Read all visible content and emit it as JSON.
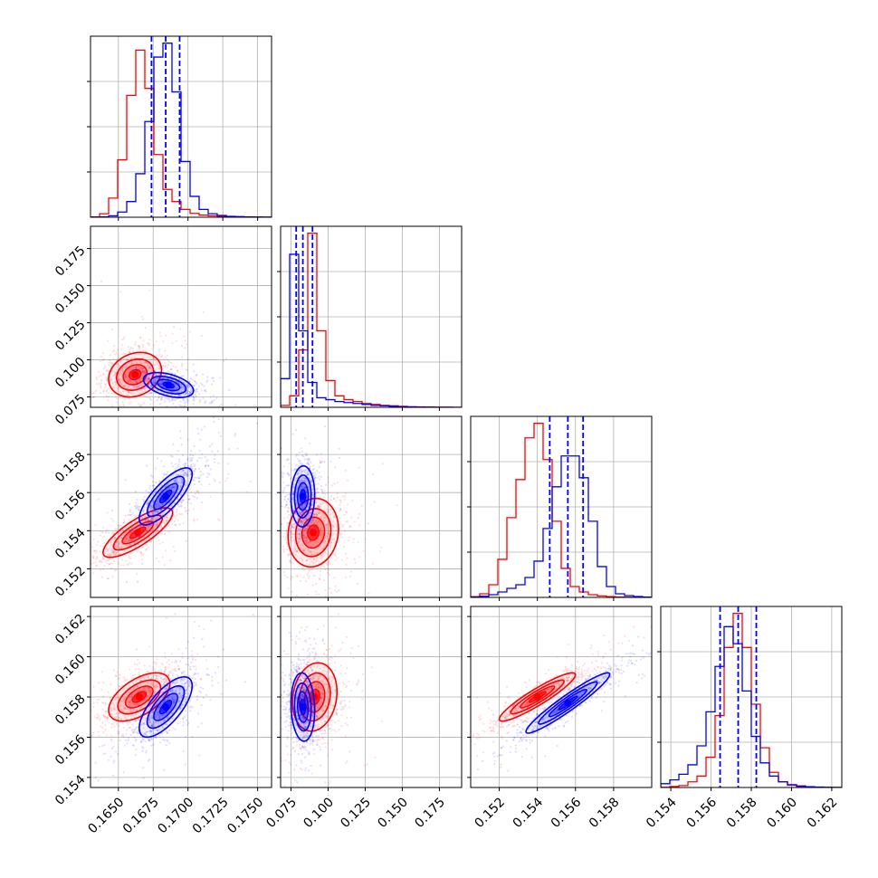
{
  "chart_data": {
    "type": "corner",
    "title": "",
    "grid": true,
    "colors": {
      "red": "#ff0000",
      "blue": "#0000ff"
    },
    "parameters": [
      {
        "index": 0,
        "range": [
          0.163,
          0.176
        ],
        "ticks": [
          "0.1650",
          "0.1675",
          "0.1700",
          "0.1725",
          "0.1750"
        ],
        "tick_values": [
          0.165,
          0.1675,
          0.17,
          0.1725,
          0.175
        ]
      },
      {
        "index": 1,
        "range": [
          0.068,
          0.19
        ],
        "ticks": [
          "0.075",
          "0.100",
          "0.125",
          "0.150",
          "0.175"
        ],
        "tick_values": [
          0.075,
          0.1,
          0.125,
          0.15,
          0.175
        ]
      },
      {
        "index": 2,
        "range": [
          0.1505,
          0.16
        ],
        "ticks": [
          "0.152",
          "0.154",
          "0.156",
          "0.158"
        ],
        "tick_values": [
          0.152,
          0.154,
          0.156,
          0.158
        ]
      },
      {
        "index": 3,
        "range": [
          0.1535,
          0.1625
        ],
        "ticks": [
          "0.154",
          "0.156",
          "0.158",
          "0.160",
          "0.162"
        ],
        "tick_values": [
          0.154,
          0.156,
          0.158,
          0.16,
          0.162
        ]
      }
    ],
    "quantile_lines": [
      [
        0.16738,
        0.1684,
        0.1694
      ],
      [
        0.0785,
        0.083,
        0.0895
      ],
      [
        0.15465,
        0.1556,
        0.1564
      ],
      [
        0.15645,
        0.15735,
        0.15825
      ]
    ],
    "histograms": {
      "red": [
        [
          0.002,
          0.02,
          0.11,
          0.33,
          0.7,
          0.96,
          0.74,
          0.36,
          0.16,
          0.09,
          0.045,
          0.022,
          0.012,
          0.008,
          0.006,
          0.004,
          0.003,
          0.002,
          0.001,
          0.0005
        ],
        [
          0.01,
          0.06,
          0.3,
          0.91,
          0.4,
          0.14,
          0.06,
          0.04,
          0.03,
          0.02,
          0.015,
          0.01,
          0.008,
          0.005,
          0.003,
          0.002,
          0.001,
          0.0005,
          0.0003,
          0.0001
        ],
        [
          0.004,
          0.02,
          0.07,
          0.21,
          0.44,
          0.65,
          0.88,
          0.96,
          0.76,
          0.42,
          0.16,
          0.06,
          0.03,
          0.015,
          0.008,
          0.004,
          0.002,
          0.001,
          0.0005,
          0.0002
        ],
        [
          0.001,
          0.005,
          0.01,
          0.03,
          0.06,
          0.16,
          0.38,
          0.74,
          0.92,
          0.74,
          0.44,
          0.21,
          0.08,
          0.03,
          0.012,
          0.005,
          0.002,
          0.001,
          0.0005,
          0.0001
        ]
      ],
      "blue": [
        [
          0.0005,
          0.002,
          0.008,
          0.03,
          0.09,
          0.25,
          0.55,
          0.92,
          1.0,
          0.72,
          0.32,
          0.12,
          0.045,
          0.02,
          0.01,
          0.005,
          0.003,
          0.002,
          0.001,
          0.0005
        ],
        [
          0.15,
          0.8,
          0.4,
          0.13,
          0.05,
          0.04,
          0.03,
          0.025,
          0.02,
          0.015,
          0.01,
          0.008,
          0.005,
          0.003,
          0.002,
          0.001,
          0.001,
          0.0005,
          0.0003,
          0.0001
        ],
        [
          0.002,
          0.006,
          0.015,
          0.03,
          0.05,
          0.07,
          0.11,
          0.2,
          0.38,
          0.61,
          0.78,
          0.78,
          0.66,
          0.42,
          0.17,
          0.06,
          0.02,
          0.01,
          0.005,
          0.002
        ],
        [
          0.02,
          0.04,
          0.07,
          0.12,
          0.22,
          0.4,
          0.64,
          0.85,
          0.76,
          0.51,
          0.27,
          0.13,
          0.06,
          0.03,
          0.015,
          0.008,
          0.004,
          0.002,
          0.001,
          0.0005
        ]
      ]
    },
    "contours": {
      "red": [
        {
          "x": 1,
          "y": 0,
          "center": [
            0.1662,
            0.09
          ],
          "sigma": [
            0.00095,
            0.0075
          ],
          "rho": 0.2
        },
        {
          "x": 2,
          "y": 0,
          "center": [
            0.1664,
            0.1539
          ],
          "sigma": [
            0.00125,
            0.00065
          ],
          "rho": 0.8
        },
        {
          "x": 2,
          "y": 1,
          "center": [
            0.09,
            0.1539
          ],
          "sigma": [
            0.0085,
            0.0009
          ],
          "rho": 0.1
        },
        {
          "x": 3,
          "y": 0,
          "center": [
            0.1665,
            0.158
          ],
          "sigma": [
            0.0011,
            0.0006
          ],
          "rho": 0.55
        },
        {
          "x": 3,
          "y": 1,
          "center": [
            0.091,
            0.158
          ],
          "sigma": [
            0.0075,
            0.00085
          ],
          "rho": 0.15
        },
        {
          "x": 3,
          "y": 2,
          "center": [
            0.154,
            0.158
          ],
          "sigma": [
            0.001,
            0.0006
          ],
          "rho": 0.92
        }
      ],
      "blue": [
        {
          "x": 1,
          "y": 0,
          "center": [
            0.1686,
            0.083
          ],
          "sigma": [
            0.0009,
            0.0042
          ],
          "rho": -0.45
        },
        {
          "x": 2,
          "y": 0,
          "center": [
            0.1684,
            0.1558
          ],
          "sigma": [
            0.00095,
            0.00075
          ],
          "rho": 0.78
        },
        {
          "x": 2,
          "y": 1,
          "center": [
            0.083,
            0.1558
          ],
          "sigma": [
            0.004,
            0.0008
          ],
          "rho": 0.05
        },
        {
          "x": 3,
          "y": 0,
          "center": [
            0.1684,
            0.1575
          ],
          "sigma": [
            0.00095,
            0.00075
          ],
          "rho": 0.7
        },
        {
          "x": 3,
          "y": 1,
          "center": [
            0.083,
            0.1575
          ],
          "sigma": [
            0.004,
            0.00085
          ],
          "rho": -0.1
        },
        {
          "x": 3,
          "y": 2,
          "center": [
            0.1556,
            0.1577
          ],
          "sigma": [
            0.0011,
            0.00075
          ],
          "rho": 0.95
        }
      ]
    }
  }
}
